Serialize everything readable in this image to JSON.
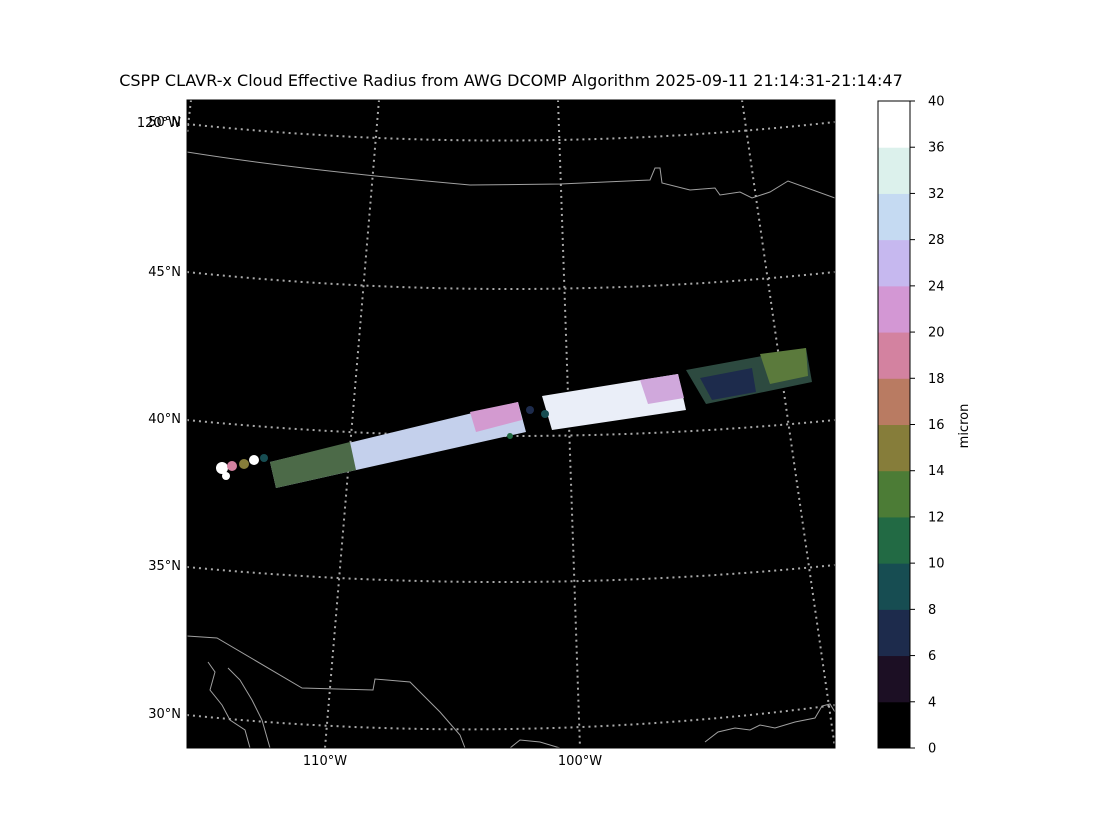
{
  "title": "CSPP CLAVR-x Cloud Effective Radius from AWG DCOMP Algorithm 2025-09-11 21:14:31-21:14:47",
  "colorbar": {
    "label": "micron",
    "ticks": [
      "0",
      "4",
      "6",
      "8",
      "10",
      "12",
      "14",
      "16",
      "18",
      "20",
      "24",
      "28",
      "32",
      "36",
      "40"
    ],
    "colors": [
      "#000000",
      "#1c0f24",
      "#1d2b4c",
      "#174d52",
      "#226a44",
      "#4c7c36",
      "#867d3a",
      "#b97b62",
      "#d382a0",
      "#d397d4",
      "#c6b8ef",
      "#c5daf2",
      "#dcf1ec",
      "#ffffff"
    ]
  },
  "axes": {
    "lat_labels": [
      "30°N",
      "35°N",
      "40°N",
      "45°N",
      "50°N"
    ],
    "lon_labels": [
      "110°W",
      "100°W"
    ],
    "corner_label": "120°W"
  },
  "map": {
    "background": "#000000",
    "gridline_color": "#aaaaaa",
    "boundary_color": "#a0a0a0"
  }
}
